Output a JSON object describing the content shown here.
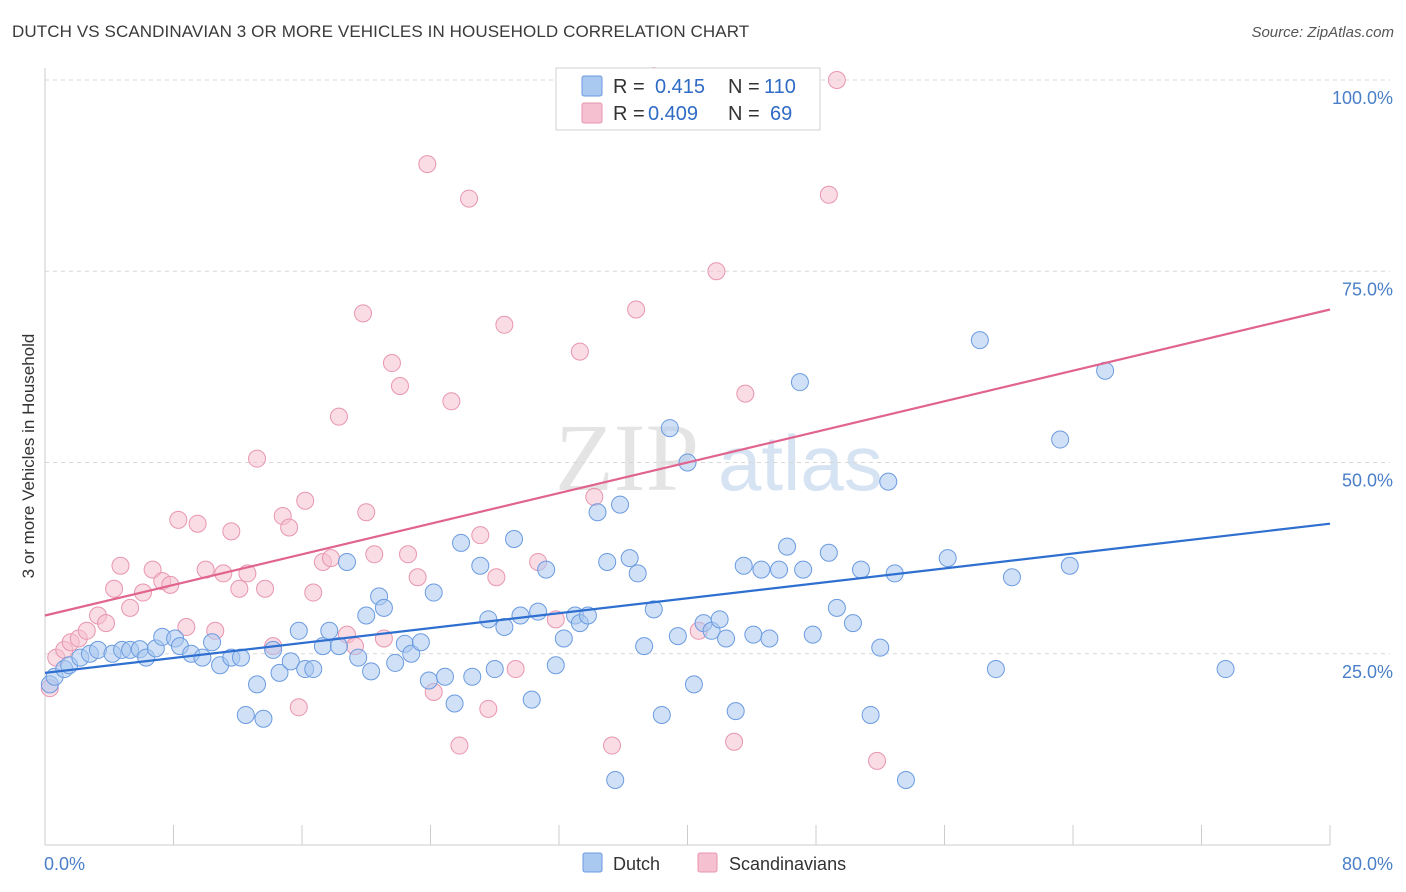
{
  "title": "DUTCH VS SCANDINAVIAN 3 OR MORE VEHICLES IN HOUSEHOLD CORRELATION CHART",
  "source": "Source: ZipAtlas.com",
  "watermark": {
    "zip": "ZIP",
    "atlas": "atlas"
  },
  "legend": {
    "dutch": {
      "r_label": "R =",
      "r_value": "0.415",
      "n_label": "N =",
      "n_value": "110"
    },
    "scandinavians": {
      "r_label": "R =",
      "r_value": "0.409",
      "n_label": "N =",
      "n_value": "69"
    }
  },
  "bottom_legend": [
    "Dutch",
    "Scandinavians"
  ],
  "colors": {
    "dutch_fill": "#a9c9f0",
    "dutch_stroke": "#6b9be0",
    "dutch_line": "#2e6fd0",
    "scand_fill": "#f5c0d0",
    "scand_stroke": "#e896b0",
    "scand_line": "#e0648e",
    "axis_label": "#4a7fc8",
    "grid": "#d8d8d8"
  },
  "chart_data": {
    "type": "scatter",
    "title": "DUTCH VS SCANDINAVIAN 3 OR MORE VEHICLES IN HOUSEHOLD CORRELATION CHART",
    "xlabel": "",
    "ylabel": "3 or more Vehicles in Household",
    "xlim": [
      0,
      80
    ],
    "ylim": [
      0,
      102
    ],
    "x_tick_labels": [
      "0.0%",
      "80.0%"
    ],
    "y_tick_labels": [
      "25.0%",
      "50.0%",
      "75.0%",
      "100.0%"
    ],
    "y_ticks": [
      25,
      50,
      75,
      100
    ],
    "grid": "horizontal dashed",
    "legend_position": "top-center",
    "series": [
      {
        "name": "Dutch",
        "r": 0.415,
        "n": 110,
        "trend": {
          "x": [
            0,
            80
          ],
          "y": [
            22.5,
            42.0
          ]
        },
        "points": [
          [
            0.3,
            21
          ],
          [
            0.6,
            22
          ],
          [
            1.2,
            23
          ],
          [
            1.5,
            23.5
          ],
          [
            2.2,
            24.5
          ],
          [
            2.8,
            25
          ],
          [
            3.3,
            25.5
          ],
          [
            4.2,
            25
          ],
          [
            4.8,
            25.5
          ],
          [
            5.3,
            25.5
          ],
          [
            5.9,
            25.6
          ],
          [
            6.3,
            24.5
          ],
          [
            6.9,
            25.7
          ],
          [
            7.3,
            27.2
          ],
          [
            8.1,
            27
          ],
          [
            8.4,
            26
          ],
          [
            9.1,
            25
          ],
          [
            9.8,
            24.5
          ],
          [
            10.4,
            26.5
          ],
          [
            10.9,
            23.5
          ],
          [
            11.6,
            24.5
          ],
          [
            12.2,
            24.5
          ],
          [
            12.5,
            17
          ],
          [
            13.2,
            21
          ],
          [
            13.6,
            16.5
          ],
          [
            14.2,
            25.5
          ],
          [
            14.6,
            22.5
          ],
          [
            15.3,
            24
          ],
          [
            15.8,
            28
          ],
          [
            16.2,
            23
          ],
          [
            16.7,
            23
          ],
          [
            17.3,
            26
          ],
          [
            17.7,
            28
          ],
          [
            18.3,
            26
          ],
          [
            18.8,
            37
          ],
          [
            19.5,
            24.5
          ],
          [
            20,
            30
          ],
          [
            20.3,
            22.7
          ],
          [
            20.8,
            32.5
          ],
          [
            21.1,
            31
          ],
          [
            21.8,
            23.8
          ],
          [
            22.4,
            26.3
          ],
          [
            22.8,
            25
          ],
          [
            23.4,
            26.5
          ],
          [
            23.9,
            21.5
          ],
          [
            24.2,
            33
          ],
          [
            24.9,
            22
          ],
          [
            25.5,
            18.5
          ],
          [
            25.9,
            39.5
          ],
          [
            26.6,
            22
          ],
          [
            27.1,
            36.5
          ],
          [
            27.6,
            29.5
          ],
          [
            28,
            23
          ],
          [
            28.6,
            28.5
          ],
          [
            29.2,
            40
          ],
          [
            29.6,
            30
          ],
          [
            30.3,
            19
          ],
          [
            30.7,
            30.5
          ],
          [
            31.2,
            36
          ],
          [
            31.8,
            23.5
          ],
          [
            32.3,
            27
          ],
          [
            33,
            30
          ],
          [
            33.3,
            29
          ],
          [
            33.8,
            30
          ],
          [
            34.4,
            43.5
          ],
          [
            35,
            37
          ],
          [
            35.5,
            8.5
          ],
          [
            35.8,
            44.5
          ],
          [
            36.4,
            37.5
          ],
          [
            36.9,
            35.5
          ],
          [
            37.3,
            26
          ],
          [
            37.9,
            30.8
          ],
          [
            38.4,
            17
          ],
          [
            38.9,
            54.5
          ],
          [
            39.4,
            27.3
          ],
          [
            40,
            50
          ],
          [
            40.4,
            21
          ],
          [
            41,
            29
          ],
          [
            41.5,
            28
          ],
          [
            42,
            29.5
          ],
          [
            42.4,
            27
          ],
          [
            43,
            17.5
          ],
          [
            43.5,
            36.5
          ],
          [
            44.1,
            27.5
          ],
          [
            44.6,
            36
          ],
          [
            45.1,
            27
          ],
          [
            45.7,
            36
          ],
          [
            46.2,
            39
          ],
          [
            47,
            60.5
          ],
          [
            47.2,
            36
          ],
          [
            47.8,
            27.5
          ],
          [
            48.8,
            38.2
          ],
          [
            49.3,
            31
          ],
          [
            50.3,
            29
          ],
          [
            50.8,
            36
          ],
          [
            51.4,
            17
          ],
          [
            52,
            25.8
          ],
          [
            52.5,
            47.5
          ],
          [
            52.9,
            35.5
          ],
          [
            53.6,
            8.5
          ],
          [
            56.2,
            37.5
          ],
          [
            58.2,
            66
          ],
          [
            59.2,
            23
          ],
          [
            60.2,
            35
          ],
          [
            63.2,
            53
          ],
          [
            63.8,
            36.5
          ],
          [
            66,
            62
          ],
          [
            73.5,
            23
          ]
        ]
      },
      {
        "name": "Scandinavians",
        "r": 0.409,
        "n": 69,
        "trend": {
          "x": [
            0,
            80
          ],
          "y": [
            30.0,
            70.0
          ]
        },
        "points": [
          [
            0.3,
            20.5
          ],
          [
            0.7,
            24.5
          ],
          [
            1.2,
            25.5
          ],
          [
            1.6,
            26.5
          ],
          [
            2.1,
            27
          ],
          [
            2.6,
            28
          ],
          [
            3.3,
            30
          ],
          [
            3.8,
            29
          ],
          [
            4.3,
            33.5
          ],
          [
            4.7,
            36.5
          ],
          [
            5.3,
            31
          ],
          [
            6.1,
            33
          ],
          [
            6.7,
            36
          ],
          [
            7.3,
            34.5
          ],
          [
            7.8,
            34
          ],
          [
            8.3,
            42.5
          ],
          [
            8.8,
            28.5
          ],
          [
            9.5,
            42
          ],
          [
            10,
            36
          ],
          [
            10.6,
            28
          ],
          [
            11.1,
            35.5
          ],
          [
            11.6,
            41
          ],
          [
            12.1,
            33.5
          ],
          [
            12.6,
            35.5
          ],
          [
            13.2,
            50.5
          ],
          [
            13.7,
            33.5
          ],
          [
            14.2,
            26
          ],
          [
            14.8,
            43
          ],
          [
            15.2,
            41.5
          ],
          [
            15.8,
            18
          ],
          [
            16.2,
            45
          ],
          [
            16.7,
            33
          ],
          [
            17.3,
            37
          ],
          [
            17.8,
            37.5
          ],
          [
            18.3,
            56
          ],
          [
            18.8,
            27.5
          ],
          [
            19.3,
            26
          ],
          [
            19.8,
            69.5
          ],
          [
            20,
            43.5
          ],
          [
            20.5,
            38
          ],
          [
            21.1,
            27
          ],
          [
            21.6,
            63
          ],
          [
            22.1,
            60
          ],
          [
            22.6,
            38
          ],
          [
            23.2,
            35
          ],
          [
            23.8,
            89
          ],
          [
            24.2,
            20
          ],
          [
            25.3,
            58
          ],
          [
            25.8,
            13
          ],
          [
            26.4,
            84.5
          ],
          [
            27.1,
            40.5
          ],
          [
            27.6,
            17.8
          ],
          [
            28.1,
            35
          ],
          [
            28.6,
            68
          ],
          [
            29.3,
            23
          ],
          [
            30.7,
            37
          ],
          [
            31.8,
            29.5
          ],
          [
            33.3,
            64.5
          ],
          [
            34.2,
            45.5
          ],
          [
            35.3,
            13
          ],
          [
            36.8,
            70
          ],
          [
            37.9,
            100.5
          ],
          [
            40.7,
            28
          ],
          [
            41.8,
            75
          ],
          [
            42.9,
            13.5
          ],
          [
            43.6,
            59
          ],
          [
            48.8,
            85
          ],
          [
            49.3,
            100
          ],
          [
            51.8,
            11
          ]
        ]
      }
    ]
  }
}
